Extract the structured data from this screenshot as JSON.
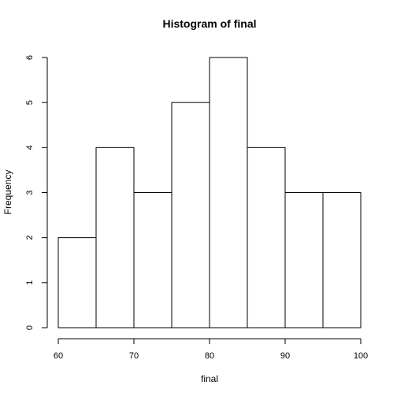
{
  "chart_data": {
    "type": "bar",
    "title": "Histogram of final",
    "xlabel": "final",
    "ylabel": "Frequency",
    "bins": [
      {
        "start": 60,
        "end": 65,
        "count": 2
      },
      {
        "start": 65,
        "end": 70,
        "count": 4
      },
      {
        "start": 70,
        "end": 75,
        "count": 3
      },
      {
        "start": 75,
        "end": 80,
        "count": 5
      },
      {
        "start": 80,
        "end": 85,
        "count": 6
      },
      {
        "start": 85,
        "end": 90,
        "count": 4
      },
      {
        "start": 90,
        "end": 95,
        "count": 3
      },
      {
        "start": 95,
        "end": 100,
        "count": 3
      }
    ],
    "xlim": [
      60,
      100
    ],
    "ylim": [
      0,
      6
    ],
    "x_ticks": [
      "60",
      "70",
      "80",
      "90",
      "100"
    ],
    "y_ticks": [
      "0",
      "1",
      "2",
      "3",
      "4",
      "5",
      "6"
    ],
    "grid": false,
    "colors": {
      "bar_fill": "#ffffff",
      "bar_stroke": "#000000",
      "axis": "#000000"
    }
  }
}
